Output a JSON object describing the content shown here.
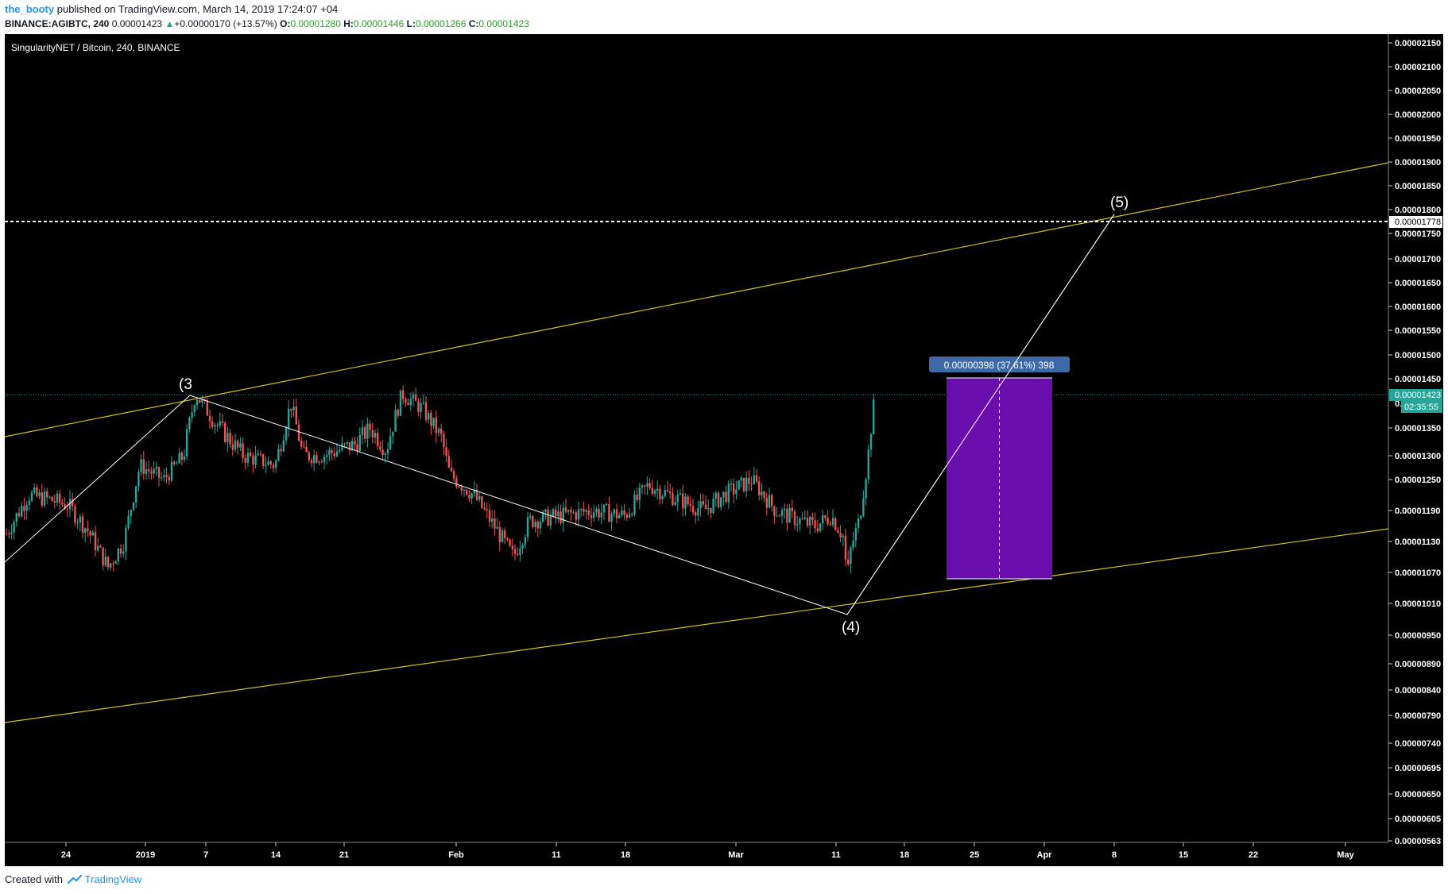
{
  "header": {
    "author": "the_booty",
    "published": "published on TradingView.com, March 14, 2019 17:24:07 +04",
    "symbol": "BINANCE:AGIBTC, 240",
    "last": "0.00001423",
    "change_arrow": "▲",
    "change": "+0.00000170 (+13.57%)",
    "o_label": "O:",
    "o": "0.00001280",
    "h_label": "H:",
    "h": "0.00001446",
    "l_label": "L:",
    "l": "0.00001266",
    "c_label": "C:",
    "c": "0.00001423"
  },
  "chart_data": {
    "type": "candlestick",
    "title": "SingularityNET / Bitcoin, 240, BINANCE",
    "colors": {
      "up": "#26a69a",
      "down": "#ef5350",
      "trendline": "#d4c31c",
      "wave": "#ffffff",
      "box": "#6a0dad",
      "box_border": "#ffffff",
      "last_price": "#26a69a",
      "dotted_level": "#ffffff"
    },
    "price_axis_ticks": [
      "0.00002150",
      "0.00002100",
      "0.00002050",
      "0.00002000",
      "0.00001950",
      "0.00001900",
      "0.00001850",
      "0.00001800",
      "0.00001750",
      "0.00001700",
      "0.00001650",
      "0.00001600",
      "0.00001550",
      "0.00001500",
      "0.00001450",
      "0.00001350",
      "0.00001300",
      "0.00001250",
      "0.00001190",
      "0.00001130",
      "0.00001070",
      "0.00001010",
      "0.00000950",
      "0.00000890",
      "0.00000840",
      "0.00000790",
      "0.00000740",
      "0.00000695",
      "0.00000650",
      "0.00000605",
      "0.00000563"
    ],
    "price_axis_hidden_tick": "0.",
    "time_axis_ticks": [
      "24",
      "2019",
      "7",
      "14",
      "21",
      "Feb",
      "11",
      "18",
      "Mar",
      "11",
      "18",
      "25",
      "Apr",
      "8",
      "15",
      "22",
      "May"
    ],
    "last_price": "0.00001423",
    "countdown": "02:35:55",
    "level_line": "0.00001778",
    "measure_label": "0.00000398 (37.61%) 398",
    "wave_labels": [
      "(3",
      "(4)",
      "(5)"
    ],
    "price_range": {
      "top": 2.15e-05,
      "bottom": 5.63e-06
    },
    "candles": {
      "series": "AGIBTC 240",
      "start_price": 1.14e-05,
      "end_close": 1.423e-05,
      "high": 1.446e-05,
      "low": 1.266e-05
    }
  },
  "footer": {
    "created_with": "Created with",
    "brand": "TradingView"
  }
}
